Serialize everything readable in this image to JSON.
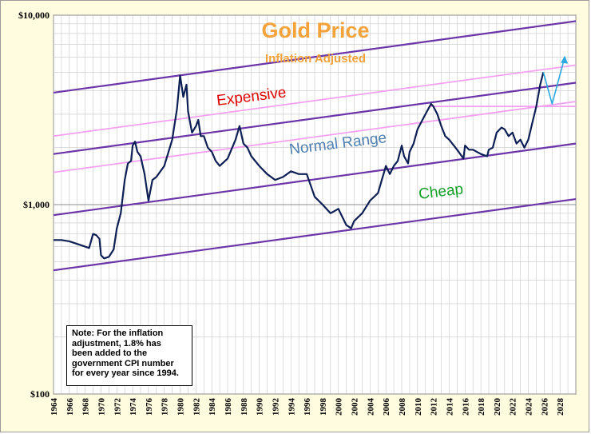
{
  "chart_data": {
    "type": "line",
    "title": "Gold Price",
    "subtitle": "Inflation Adjusted",
    "y_scale": "log",
    "ylim": [
      100,
      10000
    ],
    "y_ticks": [
      {
        "value": 100,
        "label": "$100"
      },
      {
        "value": 1000,
        "label": "$1,000"
      },
      {
        "value": 10000,
        "label": "$10,000"
      }
    ],
    "xlim": [
      1964,
      2030
    ],
    "x_ticks": [
      "1964",
      "1966",
      "1968",
      "1970",
      "1972",
      "1974",
      "1976",
      "1978",
      "1980",
      "1982",
      "1984",
      "1986",
      "1988",
      "1990",
      "1992",
      "1994",
      "1996",
      "1998",
      "2000",
      "2002",
      "2004",
      "2006",
      "2008",
      "2010",
      "2012",
      "2014",
      "2016",
      "2018",
      "2020",
      "2022",
      "2024",
      "2026",
      "2028"
    ],
    "series": [
      {
        "name": "Gold Price (inflation adjusted)",
        "color": "#0d1f55",
        "x": [
          1964,
          1965,
          1966,
          1967,
          1968,
          1968.5,
          1969,
          1969.4,
          1969.8,
          1970,
          1970.4,
          1971,
          1971.6,
          1972,
          1972.5,
          1973,
          1973.4,
          1973.8,
          1974,
          1974.3,
          1974.6,
          1975,
          1975.5,
          1976,
          1976.5,
          1977,
          1978,
          1979,
          1979.6,
          1980,
          1980.4,
          1980.8,
          1981,
          1981.5,
          1982,
          1982.3,
          1982.6,
          1983,
          1983.5,
          1984,
          1984.5,
          1985,
          1986,
          1987,
          1987.5,
          1988,
          1988.5,
          1989,
          1990,
          1991,
          1992,
          1993,
          1994,
          1995,
          1996,
          1997,
          1998,
          1999,
          2000,
          2001,
          2001.6,
          2002,
          2003,
          2004,
          2005,
          2006,
          2006.5,
          2007,
          2007.5,
          2008,
          2008.3,
          2008.8,
          2009,
          2009.5,
          2010,
          2011,
          2011.7,
          2012,
          2012.5,
          2013,
          2013.5,
          2014,
          2015,
          2015.8,
          2016,
          2016.5,
          2017,
          2018,
          2018.8,
          2019,
          2019.5,
          2020,
          2020.6,
          2021,
          2021.5,
          2022,
          2022.5,
          2023,
          2023.5,
          2024,
          2024.5,
          2025,
          2025.5,
          2025.9
        ],
        "values": [
          650,
          650,
          640,
          620,
          600,
          590,
          700,
          690,
          660,
          540,
          520,
          530,
          580,
          750,
          900,
          1350,
          1650,
          1700,
          2050,
          2150,
          1900,
          1800,
          1450,
          1050,
          1350,
          1400,
          1600,
          2200,
          3200,
          4800,
          3700,
          4300,
          3100,
          2400,
          2600,
          2800,
          2300,
          2300,
          2000,
          1900,
          1700,
          1600,
          1750,
          2200,
          2600,
          2100,
          2000,
          1800,
          1600,
          1450,
          1350,
          1400,
          1500,
          1450,
          1450,
          1100,
          1000,
          900,
          950,
          780,
          750,
          820,
          900,
          1050,
          1150,
          1600,
          1450,
          1600,
          1700,
          2050,
          1800,
          1650,
          1900,
          2100,
          2500,
          3000,
          3400,
          3300,
          3000,
          2600,
          2300,
          2200,
          1950,
          1750,
          2050,
          1950,
          1950,
          1850,
          1800,
          1950,
          2000,
          2400,
          2550,
          2500,
          2300,
          2400,
          2100,
          2200,
          2000,
          2200,
          2700,
          3300,
          4300,
          5000
        ]
      },
      {
        "name": "Projection",
        "color": "#2aa8e0",
        "x": [
          2025.9,
          2027.0,
          2028.6
        ],
        "values": [
          5000,
          3400,
          6000
        ]
      }
    ],
    "channel_lines": [
      {
        "name": "top",
        "color": "#6b35a8",
        "from": {
          "x": 1964,
          "value": 3900
        },
        "to": {
          "x": 2030,
          "value": 9300
        }
      },
      {
        "name": "expensive-upper",
        "color": "#f4a0f0",
        "from": {
          "x": 1964,
          "value": 2300
        },
        "to": {
          "x": 2030,
          "value": 5450
        }
      },
      {
        "name": "expensive-lower",
        "color": "#6b35a8",
        "from": {
          "x": 1964,
          "value": 1850
        },
        "to": {
          "x": 2030,
          "value": 4400
        }
      },
      {
        "name": "normal-upper",
        "color": "#f4a0f0",
        "from": {
          "x": 1964,
          "value": 1480
        },
        "to": {
          "x": 2030,
          "value": 3500
        }
      },
      {
        "name": "normal-lower",
        "color": "#6b35a8",
        "from": {
          "x": 1964,
          "value": 880
        },
        "to": {
          "x": 2030,
          "value": 2100
        }
      },
      {
        "name": "bottom",
        "color": "#6b35a8",
        "from": {
          "x": 1964,
          "value": 450
        },
        "to": {
          "x": 2030,
          "value": 1070
        }
      },
      {
        "name": "pink-flat",
        "color": "#f4a0f0",
        "from": {
          "x": 2011.5,
          "value": 3300
        },
        "to": {
          "x": 2030,
          "value": 3300
        }
      }
    ],
    "annotations": [
      {
        "text": "Expensive",
        "color": "#e00000",
        "x": 1980,
        "value": 3450
      },
      {
        "text": "Normal  Range",
        "color": "#4f7fb0",
        "x": 1996.5,
        "value": 2000
      },
      {
        "text": "Cheap",
        "color": "#16a02a",
        "x": 2012,
        "value": 1050
      }
    ],
    "note": "Note: For  the inflation\nadjustment, 1.8% has\nbeen added to the\ngovernment CPI number\nfor every year since 1994."
  }
}
